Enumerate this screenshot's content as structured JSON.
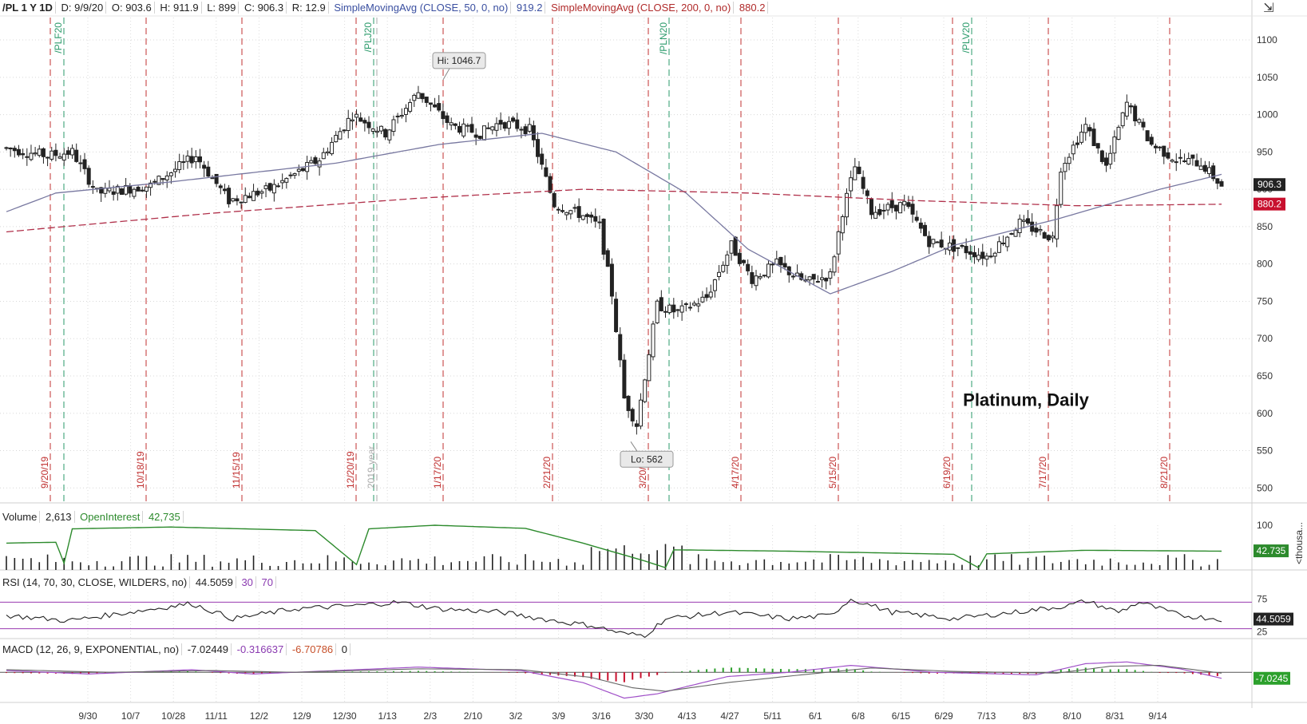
{
  "header": {
    "symbol": "/PL 1 Y 1D",
    "date": "D: 9/9/20",
    "open": "O: 903.6",
    "high": "H: 911.9",
    "low": "L: 899",
    "close": "C: 906.3",
    "range": "R: 12.9",
    "sma50_label": "SimpleMovingAvg (CLOSE, 50, 0, no)",
    "sma50_value": "919.2",
    "sma200_label": "SimpleMovingAvg (CLOSE, 200, 0, no)",
    "sma200_value": "880.2"
  },
  "volume_header": {
    "label": "Volume",
    "value": "2,613",
    "oi_label": "OpenInterest",
    "oi_value": "42,735"
  },
  "rsi_header": {
    "label": "RSI (14, 70, 30, CLOSE, WILDERS, no)",
    "value": "44.5059",
    "lower": "30",
    "upper": "70"
  },
  "macd_header": {
    "label": "MACD (12, 26, 9, EXPONENTIAL, no)",
    "value": "-7.02449",
    "avg": "-0.316637",
    "diff": "-6.70786",
    "zero": "0"
  },
  "chart_data": {
    "type": "candlestick",
    "title": "Platinum, Daily",
    "price_axis": {
      "ylim": [
        480,
        1130
      ],
      "ticks": [
        500,
        550,
        600,
        650,
        700,
        750,
        800,
        850,
        900,
        950,
        1000,
        1050,
        1100
      ]
    },
    "x_ticks": [
      "9/30",
      "10/7",
      "10/28",
      "11/11",
      "12/2",
      "12/9",
      "12/30",
      "1/13",
      "2/3",
      "2/10",
      "3/2",
      "3/9",
      "3/16",
      "3/30",
      "4/13",
      "4/27",
      "5/11",
      "6/1",
      "6/8",
      "6/15",
      "6/29",
      "7/13",
      "8/3",
      "8/10",
      "8/31",
      "9/14"
    ],
    "expiry_lines": [
      {
        "label": "9/20/19",
        "color": "#c03030"
      },
      {
        "label": "/PLF20",
        "color": "#2a9a6a"
      },
      {
        "label": "10/18/19",
        "color": "#c03030"
      },
      {
        "label": "11/15/19",
        "color": "#c03030"
      },
      {
        "label": "12/20/19",
        "color": "#c03030"
      },
      {
        "label": "/PLJ20",
        "color": "#2a9a6a"
      },
      {
        "label": "2019 year",
        "color": "#aaaaaa"
      },
      {
        "label": "1/17/20",
        "color": "#c03030"
      },
      {
        "label": "2/21/20",
        "color": "#c03030"
      },
      {
        "label": "3/20/20",
        "color": "#c03030"
      },
      {
        "label": "/PLN20",
        "color": "#2a9a6a"
      },
      {
        "label": "4/17/20",
        "color": "#c03030"
      },
      {
        "label": "5/15/20",
        "color": "#c03030"
      },
      {
        "label": "6/19/20",
        "color": "#c03030"
      },
      {
        "label": "/PLV20",
        "color": "#2a9a6a"
      },
      {
        "label": "7/17/20",
        "color": "#c03030"
      },
      {
        "label": "8/21/20",
        "color": "#c03030"
      }
    ],
    "annotations": [
      {
        "label": "Hi: 1046.7",
        "value": 1046.7
      },
      {
        "label": "Lo: 562",
        "value": 562
      }
    ],
    "price_anchors": [
      {
        "t": 0,
        "v": 955
      },
      {
        "t": 10,
        "v": 945
      },
      {
        "t": 16,
        "v": 950
      },
      {
        "t": 22,
        "v": 895
      },
      {
        "t": 35,
        "v": 905
      },
      {
        "t": 46,
        "v": 945
      },
      {
        "t": 54,
        "v": 885
      },
      {
        "t": 64,
        "v": 900
      },
      {
        "t": 76,
        "v": 940
      },
      {
        "t": 84,
        "v": 1000
      },
      {
        "t": 92,
        "v": 975
      },
      {
        "t": 100,
        "v": 1030
      },
      {
        "t": 108,
        "v": 985
      },
      {
        "t": 115,
        "v": 975
      },
      {
        "t": 120,
        "v": 990
      },
      {
        "t": 127,
        "v": 980
      },
      {
        "t": 133,
        "v": 880
      },
      {
        "t": 140,
        "v": 865
      },
      {
        "t": 144,
        "v": 850
      },
      {
        "t": 147,
        "v": 760
      },
      {
        "t": 150,
        "v": 620
      },
      {
        "t": 153,
        "v": 585
      },
      {
        "t": 155,
        "v": 650
      },
      {
        "t": 158,
        "v": 745
      },
      {
        "t": 163,
        "v": 735
      },
      {
        "t": 170,
        "v": 755
      },
      {
        "t": 176,
        "v": 825
      },
      {
        "t": 181,
        "v": 780
      },
      {
        "t": 187,
        "v": 800
      },
      {
        "t": 194,
        "v": 775
      },
      {
        "t": 200,
        "v": 785
      },
      {
        "t": 203,
        "v": 870
      },
      {
        "t": 206,
        "v": 930
      },
      {
        "t": 210,
        "v": 870
      },
      {
        "t": 218,
        "v": 880
      },
      {
        "t": 224,
        "v": 830
      },
      {
        "t": 232,
        "v": 820
      },
      {
        "t": 238,
        "v": 810
      },
      {
        "t": 246,
        "v": 855
      },
      {
        "t": 254,
        "v": 835
      },
      {
        "t": 256,
        "v": 930
      },
      {
        "t": 262,
        "v": 985
      },
      {
        "t": 267,
        "v": 930
      },
      {
        "t": 272,
        "v": 1015
      },
      {
        "t": 278,
        "v": 960
      },
      {
        "t": 284,
        "v": 940
      },
      {
        "t": 290,
        "v": 935
      },
      {
        "t": 295,
        "v": 905
      }
    ],
    "sma50": {
      "name": "SMA 50",
      "color": "#7878a0",
      "values": [
        {
          "t": 0,
          "v": 870
        },
        {
          "t": 12,
          "v": 895
        },
        {
          "t": 40,
          "v": 910
        },
        {
          "t": 80,
          "v": 935
        },
        {
          "t": 105,
          "v": 960
        },
        {
          "t": 130,
          "v": 975
        },
        {
          "t": 148,
          "v": 950
        },
        {
          "t": 165,
          "v": 895
        },
        {
          "t": 180,
          "v": 820
        },
        {
          "t": 200,
          "v": 760
        },
        {
          "t": 215,
          "v": 790
        },
        {
          "t": 230,
          "v": 825
        },
        {
          "t": 255,
          "v": 860
        },
        {
          "t": 280,
          "v": 900
        },
        {
          "t": 295,
          "v": 920
        }
      ]
    },
    "sma200": {
      "name": "SMA 200",
      "color": "#b0304a",
      "values": [
        {
          "t": 0,
          "v": 843
        },
        {
          "t": 50,
          "v": 868
        },
        {
          "t": 100,
          "v": 888
        },
        {
          "t": 140,
          "v": 900
        },
        {
          "t": 180,
          "v": 895
        },
        {
          "t": 220,
          "v": 885
        },
        {
          "t": 260,
          "v": 878
        },
        {
          "t": 295,
          "v": 880
        }
      ]
    },
    "last_tags": [
      {
        "label": "906.3",
        "value": 906.3,
        "color": "#222222"
      },
      {
        "label": "880.2",
        "value": 880.2,
        "color": "#c8102e"
      }
    ],
    "volume": {
      "ylim": [
        0,
        100
      ],
      "ticks": [
        100
      ],
      "unit": "<thousa...",
      "open_interest": [
        {
          "t": 0,
          "v": 60
        },
        {
          "t": 12,
          "v": 62
        },
        {
          "t": 14,
          "v": 15
        },
        {
          "t": 16,
          "v": 92
        },
        {
          "t": 40,
          "v": 96
        },
        {
          "t": 75,
          "v": 88
        },
        {
          "t": 85,
          "v": 12
        },
        {
          "t": 88,
          "v": 92
        },
        {
          "t": 104,
          "v": 100
        },
        {
          "t": 126,
          "v": 93
        },
        {
          "t": 140,
          "v": 60
        },
        {
          "t": 155,
          "v": 20
        },
        {
          "t": 160,
          "v": 5
        },
        {
          "t": 162,
          "v": 45
        },
        {
          "t": 190,
          "v": 42
        },
        {
          "t": 230,
          "v": 35
        },
        {
          "t": 236,
          "v": 5
        },
        {
          "t": 238,
          "v": 36
        },
        {
          "t": 262,
          "v": 44
        },
        {
          "t": 295,
          "v": 42
        }
      ],
      "last_tag": {
        "label": "42.735",
        "value": 42.7
      }
    },
    "rsi": {
      "ylim": [
        15,
        85
      ],
      "ticks": [
        75,
        25
      ],
      "overbought": 70,
      "oversold": 30,
      "values": [
        {
          "t": 0,
          "v": 50
        },
        {
          "t": 15,
          "v": 42
        },
        {
          "t": 30,
          "v": 55
        },
        {
          "t": 45,
          "v": 68
        },
        {
          "t": 55,
          "v": 45
        },
        {
          "t": 70,
          "v": 60
        },
        {
          "t": 85,
          "v": 65
        },
        {
          "t": 95,
          "v": 70
        },
        {
          "t": 105,
          "v": 60
        },
        {
          "t": 120,
          "v": 55
        },
        {
          "t": 135,
          "v": 40
        },
        {
          "t": 142,
          "v": 35
        },
        {
          "t": 150,
          "v": 22
        },
        {
          "t": 155,
          "v": 20
        },
        {
          "t": 160,
          "v": 45
        },
        {
          "t": 175,
          "v": 55
        },
        {
          "t": 190,
          "v": 45
        },
        {
          "t": 200,
          "v": 50
        },
        {
          "t": 205,
          "v": 75
        },
        {
          "t": 215,
          "v": 55
        },
        {
          "t": 230,
          "v": 45
        },
        {
          "t": 245,
          "v": 55
        },
        {
          "t": 258,
          "v": 65
        },
        {
          "t": 262,
          "v": 72
        },
        {
          "t": 270,
          "v": 55
        },
        {
          "t": 275,
          "v": 70
        },
        {
          "t": 285,
          "v": 50
        },
        {
          "t": 295,
          "v": 44.5
        }
      ],
      "last_tag": {
        "label": "44.5059",
        "value": 44.5
      }
    },
    "macd": {
      "ylim": [
        -35,
        15
      ],
      "values": [
        {
          "t": 0,
          "v": 2
        },
        {
          "t": 20,
          "v": -2
        },
        {
          "t": 45,
          "v": 3
        },
        {
          "t": 60,
          "v": -2
        },
        {
          "t": 80,
          "v": 2
        },
        {
          "t": 100,
          "v": 6
        },
        {
          "t": 125,
          "v": 2
        },
        {
          "t": 140,
          "v": -12
        },
        {
          "t": 150,
          "v": -30
        },
        {
          "t": 158,
          "v": -25
        },
        {
          "t": 175,
          "v": -5
        },
        {
          "t": 190,
          "v": 0
        },
        {
          "t": 205,
          "v": 8
        },
        {
          "t": 225,
          "v": 0
        },
        {
          "t": 250,
          "v": -3
        },
        {
          "t": 262,
          "v": 10
        },
        {
          "t": 272,
          "v": 12
        },
        {
          "t": 285,
          "v": 4
        },
        {
          "t": 295,
          "v": -7
        }
      ],
      "signal": [
        {
          "t": 0,
          "v": 3
        },
        {
          "t": 25,
          "v": 0
        },
        {
          "t": 50,
          "v": 2
        },
        {
          "t": 70,
          "v": 0
        },
        {
          "t": 100,
          "v": 4
        },
        {
          "t": 125,
          "v": 3
        },
        {
          "t": 142,
          "v": -6
        },
        {
          "t": 152,
          "v": -18
        },
        {
          "t": 160,
          "v": -22
        },
        {
          "t": 175,
          "v": -12
        },
        {
          "t": 195,
          "v": -2
        },
        {
          "t": 210,
          "v": 5
        },
        {
          "t": 230,
          "v": 1
        },
        {
          "t": 255,
          "v": -1
        },
        {
          "t": 268,
          "v": 7
        },
        {
          "t": 280,
          "v": 8
        },
        {
          "t": 295,
          "v": -1
        }
      ],
      "last_tag": {
        "label": "-7.0245",
        "value": -7.0
      }
    }
  }
}
